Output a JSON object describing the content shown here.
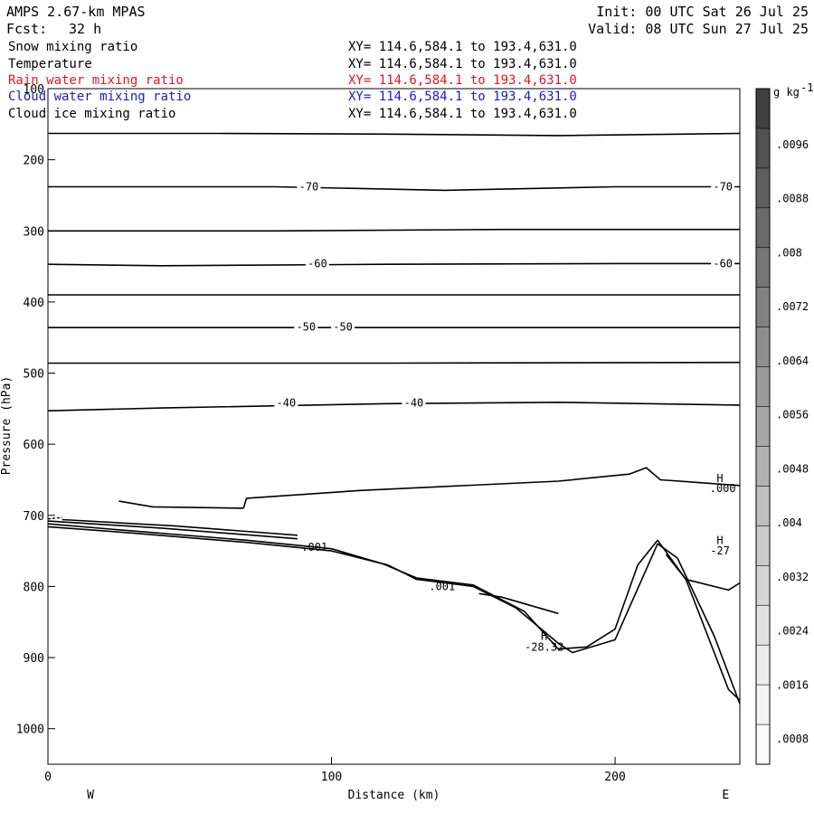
{
  "header": {
    "model": "AMPS 2.67-km MPAS",
    "init": "Init: 00 UTC Sat 26 Jul 25",
    "fcst_label": "Fcst:",
    "fcst_value": "32 h",
    "valid": "Valid: 08 UTC Sun 27 Jul 25"
  },
  "fields": [
    {
      "name": "Snow mixing ratio",
      "xy": "XY= 114.6,584.1 to 193.4,631.0",
      "color": "#000000"
    },
    {
      "name": "Temperature",
      "xy": "XY= 114.6,584.1 to 193.4,631.0",
      "color": "#000000"
    },
    {
      "name": "Rain water mixing ratio",
      "xy": "XY= 114.6,584.1 to 193.4,631.0",
      "color": "#e8141c"
    },
    {
      "name": "Cloud water mixing ratio",
      "xy": "XY= 114.6,584.1 to 193.4,631.0",
      "color": "#1a1ad0"
    },
    {
      "name": "Cloud ice mixing ratio",
      "xy": "XY= 114.6,584.1 to 193.4,631.0",
      "color": "#000000"
    }
  ],
  "chart_data": {
    "type": "line",
    "xlabel": "Distance (km)",
    "ylabel": "Pressure (hPa)",
    "xlim": [
      0,
      244
    ],
    "ylim": [
      1050,
      100
    ],
    "x_ticks": [
      "0",
      "100",
      "200"
    ],
    "y_ticks": [
      "200",
      "300",
      "400",
      "500",
      "600",
      "700",
      "800",
      "900",
      "1000"
    ],
    "top_tick_label": "100",
    "west_label": "W",
    "east_label": "E",
    "isotherms": [
      {
        "points": [
          [
            0,
            163
          ],
          [
            60,
            163
          ],
          [
            120,
            164
          ],
          [
            180,
            166
          ],
          [
            244,
            163
          ]
        ]
      },
      {
        "points": [
          [
            0,
            238
          ],
          [
            80,
            238
          ],
          [
            140,
            243
          ],
          [
            200,
            238
          ],
          [
            244,
            238
          ]
        ]
      },
      {
        "points": [
          [
            0,
            300
          ],
          [
            80,
            300
          ],
          [
            160,
            298
          ],
          [
            244,
            298
          ]
        ]
      },
      {
        "points": [
          [
            0,
            347
          ],
          [
            40,
            349
          ],
          [
            120,
            347
          ],
          [
            200,
            346
          ],
          [
            244,
            346
          ]
        ]
      },
      {
        "points": [
          [
            0,
            390
          ],
          [
            120,
            390
          ],
          [
            244,
            390
          ]
        ]
      },
      {
        "points": [
          [
            0,
            436
          ],
          [
            120,
            436
          ],
          [
            244,
            436
          ]
        ]
      },
      {
        "points": [
          [
            0,
            486
          ],
          [
            120,
            486
          ],
          [
            244,
            485
          ]
        ]
      },
      {
        "points": [
          [
            0,
            553
          ],
          [
            40,
            549
          ],
          [
            120,
            543
          ],
          [
            180,
            541
          ],
          [
            244,
            545
          ]
        ]
      },
      {
        "points": [
          [
            69,
            690
          ],
          [
            70,
            676
          ],
          [
            110,
            665
          ],
          [
            180,
            652
          ],
          [
            205,
            642
          ],
          [
            211,
            633
          ],
          [
            216,
            650
          ],
          [
            244,
            658
          ]
        ]
      },
      {
        "points": [
          [
            25,
            680
          ],
          [
            37,
            688
          ],
          [
            69,
            690
          ]
        ]
      }
    ],
    "temperature_labels": [
      {
        "x": 92,
        "p": 238,
        "text": "-70"
      },
      {
        "x": 238,
        "p": 238,
        "text": "-70"
      },
      {
        "x": 95,
        "p": 346,
        "text": "-60"
      },
      {
        "x": 238,
        "p": 346,
        "text": "-60"
      },
      {
        "x": 91,
        "p": 435,
        "text": "-50"
      },
      {
        "x": 104,
        "p": 435,
        "text": "-50"
      },
      {
        "x": 84,
        "p": 542,
        "text": "-40"
      },
      {
        "x": 129,
        "p": 542,
        "text": "-40"
      }
    ],
    "terrain_lines": [
      {
        "points": [
          [
            0,
            716
          ],
          [
            30,
            725
          ],
          [
            70,
            738
          ],
          [
            100,
            750
          ],
          [
            120,
            770
          ],
          [
            130,
            790
          ],
          [
            150,
            800
          ],
          [
            165,
            830
          ],
          [
            180,
            880
          ],
          [
            185,
            893
          ],
          [
            200,
            875
          ],
          [
            215,
            740
          ],
          [
            222,
            760
          ],
          [
            235,
            870
          ],
          [
            244,
            965
          ]
        ]
      },
      {
        "points": [
          [
            0,
            712
          ],
          [
            30,
            722
          ],
          [
            70,
            735
          ],
          [
            100,
            747
          ],
          [
            118,
            768
          ],
          [
            130,
            788
          ],
          [
            150,
            798
          ],
          [
            168,
            835
          ],
          [
            180,
            888
          ],
          [
            190,
            885
          ],
          [
            200,
            860
          ],
          [
            208,
            770
          ],
          [
            215,
            735
          ],
          [
            225,
            790
          ],
          [
            240,
            945
          ],
          [
            244,
            960
          ]
        ]
      },
      {
        "points": [
          [
            0,
            708
          ],
          [
            40,
            718
          ],
          [
            88,
            733
          ]
        ]
      },
      {
        "points": [
          [
            5,
            706
          ],
          [
            45,
            715
          ],
          [
            88,
            728
          ]
        ]
      },
      {
        "points": [
          [
            152,
            810
          ],
          [
            160,
            815
          ],
          [
            180,
            838
          ]
        ]
      },
      {
        "points": [
          [
            218,
            755
          ],
          [
            225,
            790
          ],
          [
            240,
            805
          ],
          [
            244,
            795
          ]
        ]
      }
    ],
    "contour_labels": [
      {
        "x": 94,
        "p": 745,
        "text": ".001"
      },
      {
        "x": 139,
        "p": 800,
        "text": ".001"
      },
      {
        "x": 238,
        "p": 662,
        "text": ".000"
      },
      {
        "x": 175,
        "p": 885,
        "text": "-28.32"
      },
      {
        "x": 237,
        "p": 750,
        "text": "-27"
      }
    ],
    "highs": [
      {
        "x": 175,
        "p": 870,
        "text": "H"
      },
      {
        "x": 237,
        "p": 735,
        "text": "H"
      },
      {
        "x": 237,
        "p": 648,
        "text": "H"
      }
    ],
    "colorbar": {
      "unit": "g kg",
      "unit_exp": "-1",
      "labels": [
        ".0096",
        ".0088",
        ".008",
        ".0072",
        ".0064",
        ".0056",
        ".0048",
        ".004",
        ".0032",
        ".0024",
        ".0016",
        ".0008"
      ],
      "grays": [
        "#404040",
        "#525252",
        "#5e5e5e",
        "#6a6a6a",
        "#767676",
        "#828282",
        "#8e8e8e",
        "#9a9a9a",
        "#a6a6a6",
        "#b2b2b2",
        "#bebebe",
        "#cacaca",
        "#d6d6d6",
        "#e2e2e2",
        "#ececec",
        "#f4f4f4",
        "#fafafa"
      ]
    }
  }
}
